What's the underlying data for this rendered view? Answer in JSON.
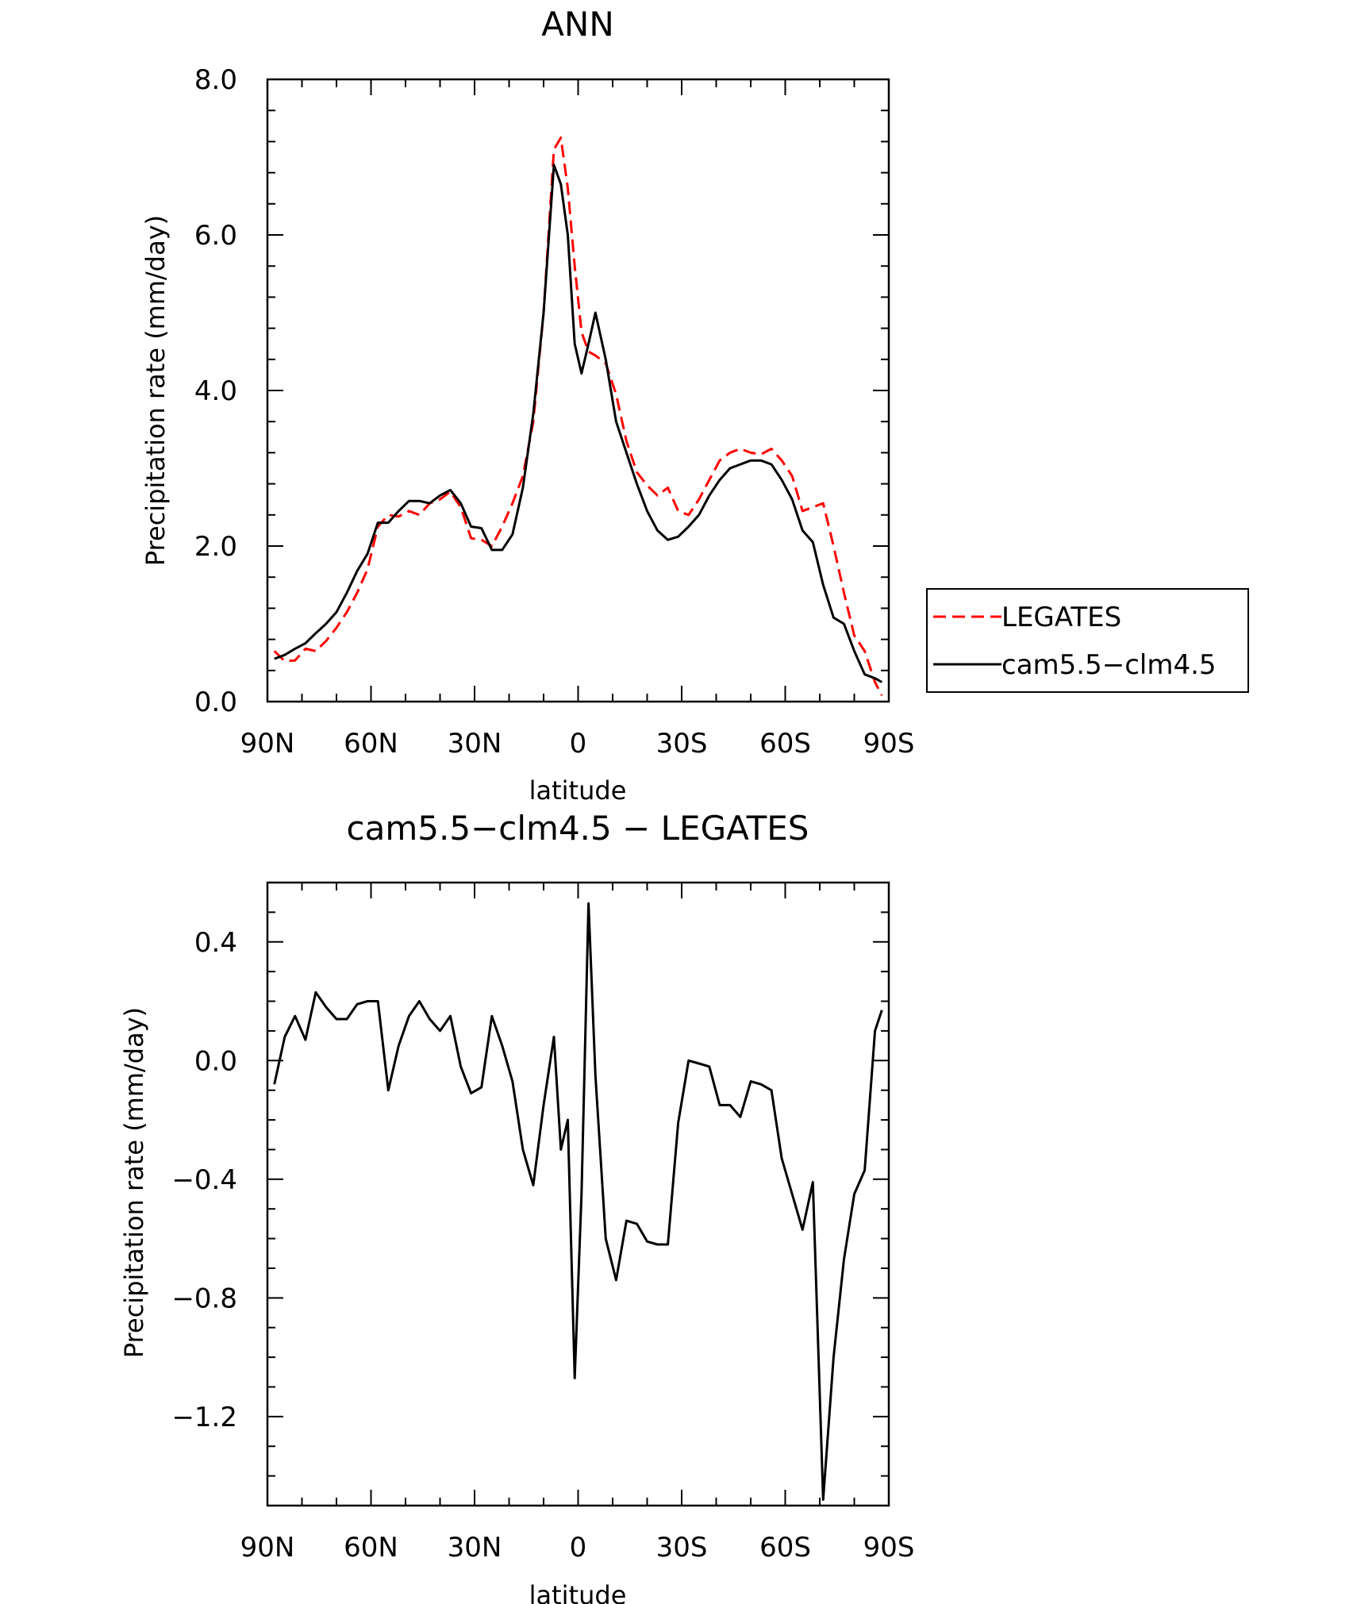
{
  "chart_data": [
    {
      "type": "line",
      "title": "ANN",
      "xlabel": "latitude",
      "ylabel": "Precipitation rate (mm/day)",
      "xlim": [
        -90,
        90
      ],
      "ylim": [
        0,
        8
      ],
      "x_note": "latitude in degrees; negative = N, positive = S",
      "xticks": [
        -90,
        -60,
        -30,
        0,
        30,
        60,
        90
      ],
      "xtick_labels": [
        "90N",
        "60N",
        "30N",
        "0",
        "30S",
        "60S",
        "90S"
      ],
      "yticks": [
        0,
        2,
        4,
        6,
        8
      ],
      "ytick_labels": [
        "0.0",
        "2.0",
        "4.0",
        "6.0",
        "8.0"
      ],
      "y_minor_step": 0.4,
      "legend_position": "right",
      "grid": false,
      "series": [
        {
          "name": "LEGATES",
          "color": "#ff0000",
          "dash": "dashed",
          "x": [
            -88,
            -85,
            -82,
            -79,
            -76,
            -73,
            -70,
            -67,
            -64,
            -61,
            -58,
            -55,
            -52,
            -49,
            -46,
            -43,
            -40,
            -37,
            -34,
            -31,
            -28,
            -25,
            -22,
            -19,
            -16,
            -13,
            -10,
            -7,
            -5,
            -3,
            -1,
            1,
            3,
            5,
            8,
            11,
            14,
            17,
            20,
            23,
            26,
            29,
            32,
            35,
            38,
            41,
            44,
            47,
            50,
            53,
            56,
            59,
            62,
            65,
            68,
            71,
            74,
            77,
            80,
            83,
            86,
            88
          ],
          "y": [
            0.65,
            0.52,
            0.53,
            0.68,
            0.65,
            0.78,
            0.95,
            1.15,
            1.4,
            1.7,
            2.25,
            2.4,
            2.38,
            2.45,
            2.4,
            2.55,
            2.6,
            2.7,
            2.5,
            2.1,
            2.08,
            2.0,
            2.25,
            2.55,
            2.9,
            3.6,
            5.0,
            7.1,
            7.25,
            6.6,
            5.6,
            4.75,
            4.5,
            4.45,
            4.35,
            3.95,
            3.35,
            2.95,
            2.78,
            2.65,
            2.75,
            2.45,
            2.4,
            2.6,
            2.85,
            3.1,
            3.2,
            3.25,
            3.2,
            3.18,
            3.25,
            3.1,
            2.9,
            2.45,
            2.5,
            2.55,
            2.0,
            1.4,
            0.85,
            0.65,
            0.25,
            0.08
          ]
        },
        {
          "name": "cam5.5−clm4.5",
          "color": "#000000",
          "dash": "solid",
          "x": [
            -88,
            -85,
            -82,
            -79,
            -76,
            -73,
            -70,
            -67,
            -64,
            -61,
            -58,
            -55,
            -52,
            -49,
            -46,
            -43,
            -40,
            -37,
            -34,
            -31,
            -28,
            -25,
            -22,
            -19,
            -16,
            -13,
            -10,
            -7,
            -5,
            -3,
            -1,
            1,
            3,
            5,
            8,
            11,
            14,
            17,
            20,
            23,
            26,
            29,
            32,
            35,
            38,
            41,
            44,
            47,
            50,
            53,
            56,
            59,
            62,
            65,
            68,
            71,
            74,
            77,
            80,
            83,
            86,
            88
          ],
          "y": [
            0.55,
            0.6,
            0.68,
            0.75,
            0.88,
            1.0,
            1.15,
            1.4,
            1.68,
            1.9,
            2.3,
            2.3,
            2.45,
            2.58,
            2.58,
            2.55,
            2.65,
            2.72,
            2.55,
            2.25,
            2.23,
            1.95,
            1.95,
            2.15,
            2.75,
            3.7,
            5.0,
            6.9,
            6.65,
            6.0,
            4.6,
            4.22,
            4.6,
            5.0,
            4.4,
            3.6,
            3.2,
            2.8,
            2.45,
            2.2,
            2.08,
            2.12,
            2.25,
            2.4,
            2.65,
            2.85,
            3.0,
            3.05,
            3.1,
            3.1,
            3.05,
            2.85,
            2.6,
            2.2,
            2.05,
            1.5,
            1.08,
            1.0,
            0.65,
            0.35,
            0.3,
            0.25
          ]
        }
      ]
    },
    {
      "type": "line",
      "title": "cam5.5−clm4.5  −  LEGATES",
      "xlabel": "latitude",
      "ylabel": "Precipitation rate (mm/day)",
      "xlim": [
        -90,
        90
      ],
      "ylim": [
        -1.5,
        0.6
      ],
      "x_note": "latitude in degrees; negative = N, positive = S",
      "xticks": [
        -90,
        -60,
        -30,
        0,
        30,
        60,
        90
      ],
      "xtick_labels": [
        "90N",
        "60N",
        "30N",
        "0",
        "30S",
        "60S",
        "90S"
      ],
      "yticks": [
        -1.2,
        -0.8,
        -0.4,
        0.0,
        0.4
      ],
      "ytick_labels": [
        "−1.2",
        "−0.8",
        "−0.4",
        "0.0",
        "0.4"
      ],
      "y_minor_step": 0.1,
      "grid": false,
      "series": [
        {
          "color": "#000000",
          "dash": "solid",
          "x": [
            -88,
            -85,
            -82,
            -79,
            -76,
            -73,
            -70,
            -67,
            -64,
            -61,
            -58,
            -55,
            -52,
            -49,
            -46,
            -43,
            -40,
            -37,
            -34,
            -31,
            -28,
            -25,
            -22,
            -19,
            -16,
            -13,
            -10,
            -7,
            -5,
            -3,
            -1,
            1,
            3,
            5,
            8,
            11,
            14,
            17,
            20,
            23,
            26,
            29,
            32,
            35,
            38,
            41,
            44,
            47,
            50,
            53,
            56,
            59,
            62,
            65,
            68,
            71,
            74,
            77,
            80,
            83,
            86,
            88
          ],
          "y": [
            -0.08,
            0.08,
            0.15,
            0.07,
            0.23,
            0.18,
            0.14,
            0.14,
            0.19,
            0.2,
            0.2,
            -0.1,
            0.05,
            0.15,
            0.2,
            0.14,
            0.1,
            0.15,
            -0.02,
            -0.11,
            -0.09,
            0.15,
            0.05,
            -0.07,
            -0.3,
            -0.42,
            -0.15,
            0.08,
            -0.3,
            -0.2,
            -1.07,
            -0.45,
            0.53,
            -0.05,
            -0.6,
            -0.74,
            -0.54,
            -0.55,
            -0.61,
            -0.62,
            -0.62,
            -0.21,
            0.0,
            -0.01,
            -0.02,
            -0.15,
            -0.15,
            -0.19,
            -0.07,
            -0.08,
            -0.1,
            -0.33,
            -0.45,
            -0.57,
            -0.41,
            -1.48,
            -1.0,
            -0.67,
            -0.45,
            -0.37,
            0.1,
            0.17
          ]
        }
      ]
    }
  ]
}
